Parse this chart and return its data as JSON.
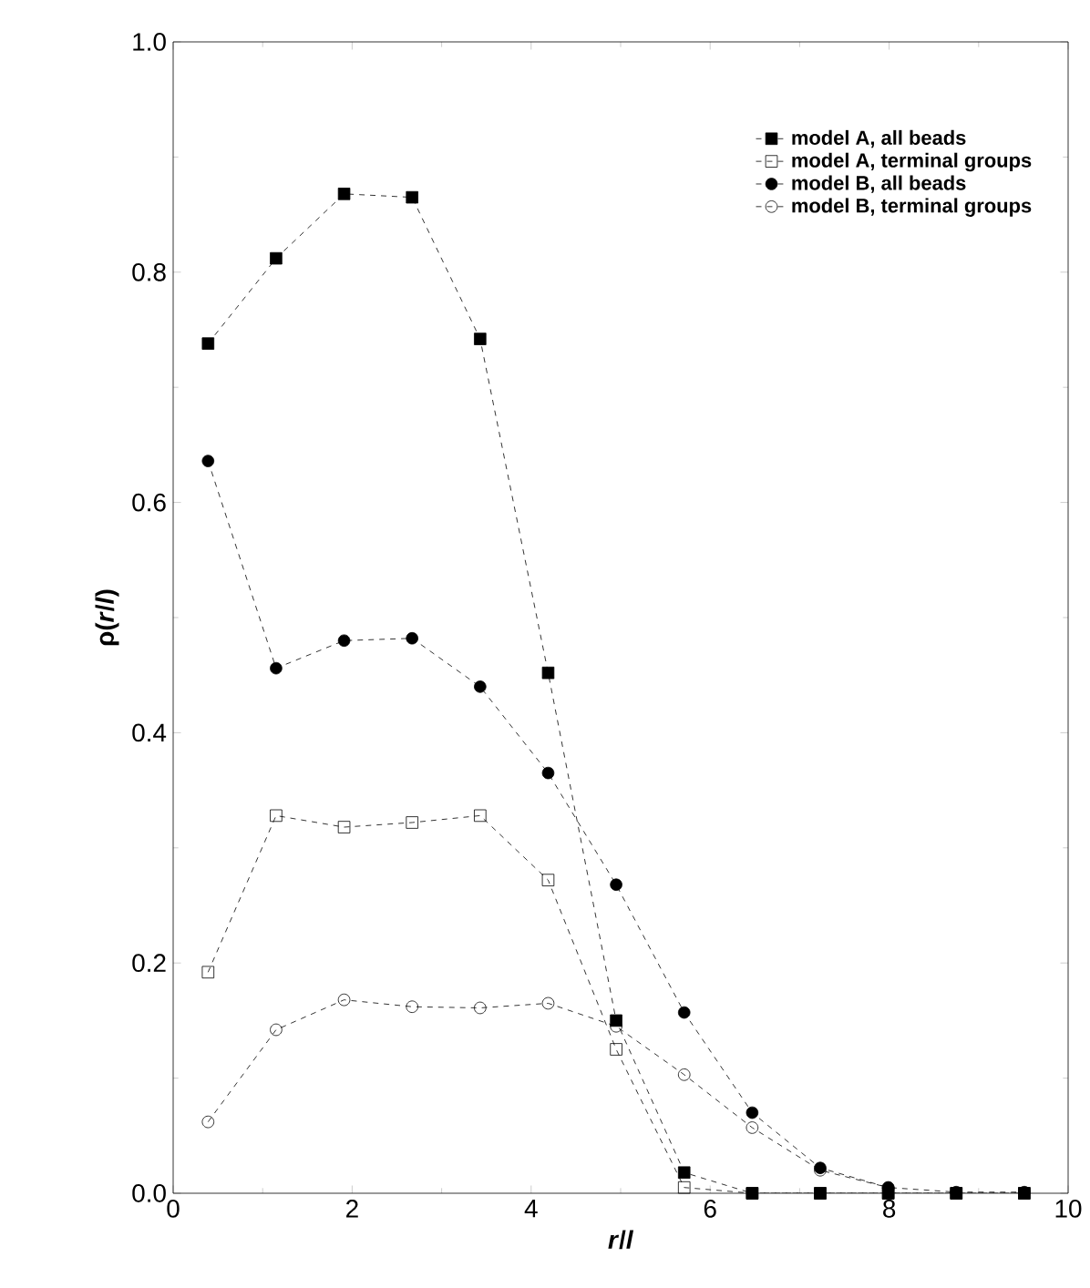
{
  "chart_data": {
    "type": "line",
    "xlabel": "*r*/*l*",
    "ylabel": "ρ(*r*/*l*)",
    "x": [
      0.39,
      1.15,
      1.91,
      2.67,
      3.43,
      4.19,
      4.95,
      5.71,
      6.47,
      7.23,
      7.99,
      8.75,
      9.51
    ],
    "series": [
      {
        "name": "model A, all beads",
        "color": "#000000",
        "marker": "square*",
        "values": [
          0.738,
          0.812,
          0.868,
          0.865,
          0.742,
          0.452,
          0.15,
          0.018,
          0,
          0,
          0,
          0,
          0
        ]
      },
      {
        "name": "model A, terminal groups",
        "color": "#000000",
        "marker": "square",
        "values": [
          0.192,
          0.328,
          0.318,
          0.322,
          0.328,
          0.272,
          0.125,
          0.005,
          0,
          0,
          0,
          0,
          0
        ]
      },
      {
        "name": "model B, all beads",
        "color": "#000000",
        "marker": "circle*",
        "values": [
          0.636,
          0.456,
          0.48,
          0.482,
          0.44,
          0.365,
          0.268,
          0.157,
          0.07,
          0.022,
          0.005,
          0.001,
          0.001
        ]
      },
      {
        "name": "model B, terminal groups",
        "color": "#000000",
        "marker": "circle",
        "values": [
          0.062,
          0.142,
          0.168,
          0.162,
          0.161,
          0.165,
          0.145,
          0.103,
          0.057,
          0.02,
          0.005,
          null,
          null
        ]
      }
    ],
    "xlim": [
      0,
      10
    ],
    "ylim": [
      0,
      1.0
    ],
    "xticks": [
      0,
      2,
      4,
      6,
      8,
      10
    ],
    "yticks": [
      {
        "value": 0,
        "label": "0.0"
      },
      0.2,
      0.4,
      0.6,
      0.8,
      {
        "value": 1.0,
        "label": "1.0"
      }
    ],
    "line_style": "dashed",
    "legend": "top right",
    "grid": false
  }
}
